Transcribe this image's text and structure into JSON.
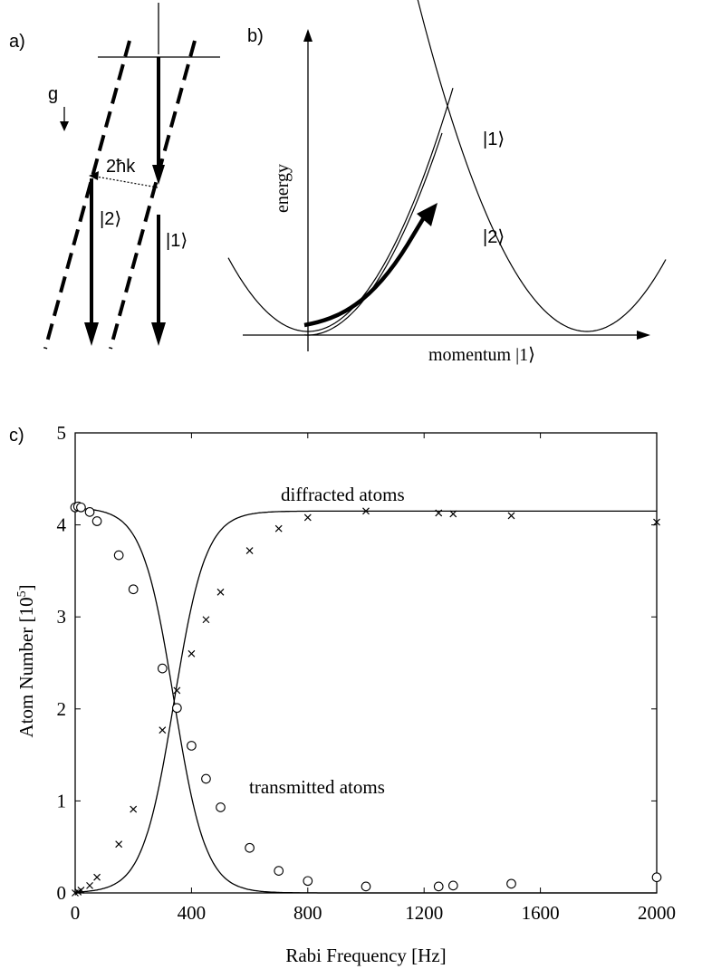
{
  "panel_a": {
    "label": "a)",
    "gravity_label": "g",
    "momentum_label": "2ħk",
    "state2_label": "|2⟩",
    "state1_label": "|1⟩"
  },
  "panel_b": {
    "label": "b)",
    "y_axis_label": "energy",
    "x_axis_label": "momentum |1⟩",
    "upper_branch_label": "|1⟩",
    "lower_branch_label": "|2⟩"
  },
  "panel_c": {
    "label": "c)"
  },
  "chart_data": {
    "type": "scatter",
    "xlabel": "Rabi Frequency [Hz]",
    "ylabel": "Atom Number [10",
    "ylabel_exp": "5",
    "ylabel_close": "]",
    "xlim": [
      0,
      2000
    ],
    "ylim": [
      0,
      5
    ],
    "xticks": [
      0,
      400,
      800,
      1200,
      1600,
      2000
    ],
    "yticks": [
      0,
      1,
      2,
      3,
      4,
      5
    ],
    "annotations": [
      "diffracted atoms",
      "transmitted atoms"
    ],
    "series": [
      {
        "marker": "x",
        "x": [
          0,
          10,
          20,
          50,
          75,
          150,
          200,
          300,
          350,
          400,
          450,
          500,
          600,
          700,
          800,
          1000,
          1250,
          1300,
          1500,
          2000
        ],
        "y": [
          0.0,
          0.01,
          0.03,
          0.08,
          0.17,
          0.53,
          0.91,
          1.77,
          2.2,
          2.6,
          2.97,
          3.27,
          3.72,
          3.96,
          4.08,
          4.15,
          4.13,
          4.12,
          4.1,
          4.03
        ]
      },
      {
        "marker": "o",
        "x": [
          0,
          10,
          20,
          50,
          75,
          150,
          200,
          300,
          350,
          400,
          450,
          500,
          600,
          700,
          800,
          1000,
          1250,
          1300,
          1500,
          2000
        ],
        "y": [
          4.19,
          4.2,
          4.19,
          4.14,
          4.04,
          3.67,
          3.3,
          2.44,
          2.01,
          1.6,
          1.24,
          0.93,
          0.49,
          0.24,
          0.13,
          0.07,
          0.07,
          0.08,
          0.1,
          0.17
        ]
      }
    ],
    "fits": [
      {
        "name": "diffracted atoms",
        "amplitude": 4.15,
        "midpoint": 340,
        "width": 120
      },
      {
        "name": "transmitted atoms",
        "amplitude": 4.19,
        "midpoint": 340,
        "width": 120
      }
    ]
  }
}
